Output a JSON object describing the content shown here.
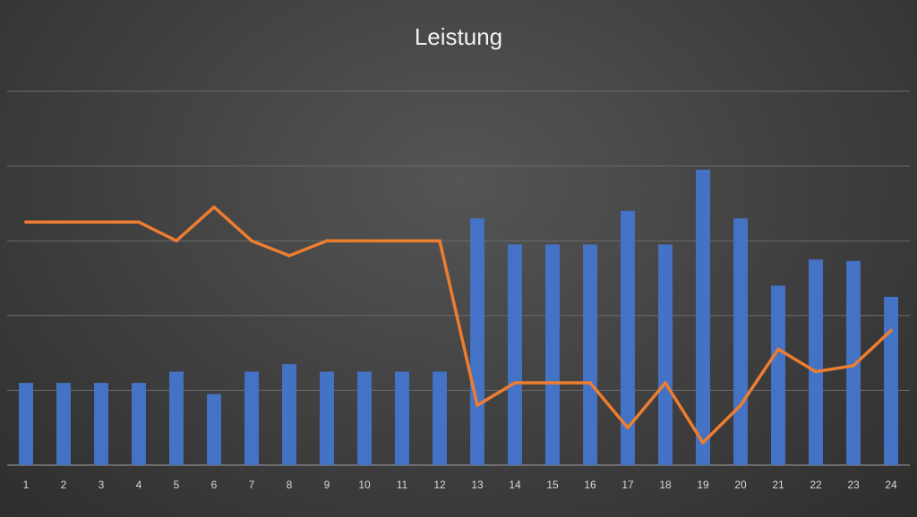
{
  "chart_data": {
    "type": "bar",
    "title": "Leistung",
    "categories": [
      "1",
      "2",
      "3",
      "4",
      "5",
      "6",
      "7",
      "8",
      "9",
      "10",
      "11",
      "12",
      "13",
      "14",
      "15",
      "16",
      "17",
      "18",
      "19",
      "20",
      "21",
      "22",
      "23",
      "24"
    ],
    "series": [
      {
        "kind": "bar",
        "color": "#4472c4",
        "values": [
          11,
          11,
          11,
          11,
          12.5,
          9.5,
          12.5,
          13.5,
          12.5,
          12.5,
          12.5,
          12.5,
          33,
          29.5,
          29.5,
          29.5,
          34,
          29.5,
          39.5,
          33,
          24,
          27.5,
          27.3,
          22.5
        ]
      },
      {
        "kind": "line",
        "color": "#ed7d31",
        "values": [
          32.5,
          32.5,
          32.5,
          32.5,
          30,
          34.5,
          30,
          28,
          30,
          30,
          30,
          30,
          8,
          11,
          11,
          11,
          5,
          11,
          3,
          8,
          15.5,
          12.5,
          13.3,
          18
        ]
      }
    ],
    "ylim": [
      0,
      50
    ],
    "yticks_count": 6,
    "grid": true,
    "legend": "bottom"
  }
}
